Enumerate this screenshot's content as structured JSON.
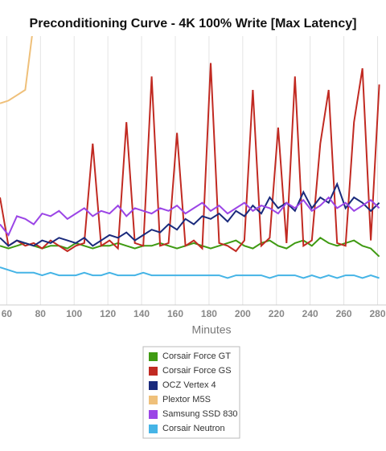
{
  "chart_data": {
    "type": "line",
    "title": "Preconditioning Curve - 4K 100% Write [Max Latency]",
    "x_label": "Minutes",
    "xlim": [
      56,
      285
    ],
    "ylim": [
      0,
      100
    ],
    "xticks": [
      60,
      80,
      100,
      120,
      140,
      160,
      180,
      200,
      220,
      240,
      260,
      280
    ],
    "grid": true,
    "legend": "bottom",
    "x": [
      56,
      61,
      66,
      71,
      76,
      81,
      86,
      91,
      96,
      101,
      106,
      111,
      116,
      121,
      126,
      131,
      136,
      141,
      146,
      151,
      156,
      161,
      166,
      171,
      176,
      181,
      186,
      191,
      196,
      201,
      206,
      211,
      216,
      221,
      226,
      231,
      236,
      241,
      246,
      251,
      256,
      261,
      266,
      271,
      276,
      281
    ],
    "series": [
      {
        "name": "Corsair Force GT",
        "color": "#3f9a12",
        "values": [
          22,
          21,
          22,
          23,
          22,
          21,
          22,
          22,
          21,
          23,
          22,
          21,
          22,
          22,
          23,
          22,
          21,
          22,
          22,
          23,
          22,
          21,
          22,
          23,
          22,
          21,
          22,
          23,
          24,
          22,
          21,
          23,
          24,
          22,
          21,
          23,
          24,
          22,
          25,
          23,
          22,
          23,
          24,
          22,
          21,
          18
        ]
      },
      {
        "name": "Corsair Force GS",
        "color": "#c12a22",
        "values": [
          40,
          22,
          24,
          22,
          23,
          21,
          24,
          22,
          20,
          22,
          23,
          60,
          22,
          24,
          21,
          68,
          23,
          22,
          85,
          22,
          23,
          64,
          22,
          24,
          21,
          90,
          23,
          22,
          20,
          24,
          80,
          22,
          25,
          66,
          23,
          85,
          22,
          24,
          60,
          80,
          23,
          22,
          68,
          88,
          24,
          82
        ]
      },
      {
        "name": "OCZ Vertex 4",
        "color": "#1a2a7c",
        "values": [
          25,
          22,
          24,
          23,
          22,
          24,
          23,
          25,
          24,
          23,
          25,
          22,
          24,
          26,
          25,
          27,
          24,
          26,
          28,
          27,
          30,
          28,
          32,
          30,
          33,
          32,
          34,
          31,
          35,
          33,
          37,
          34,
          40,
          36,
          38,
          35,
          42,
          36,
          40,
          38,
          45,
          36,
          40,
          38,
          35,
          38
        ]
      },
      {
        "name": "Plextor M5S",
        "color": "#efc07a",
        "values": [
          75,
          76,
          78,
          80,
          105,
          null,
          null,
          null,
          null,
          null,
          null,
          null,
          null,
          null,
          null,
          null,
          null,
          null,
          null,
          null,
          null,
          null,
          null,
          null,
          null,
          null,
          null,
          null,
          null,
          null,
          null,
          null,
          null,
          null,
          null,
          null,
          null,
          null,
          null,
          null,
          null,
          null,
          null,
          null,
          null,
          null
        ]
      },
      {
        "name": "Samsung SSD 830",
        "color": "#9b45e6",
        "values": [
          30,
          26,
          33,
          32,
          30,
          34,
          33,
          35,
          32,
          34,
          36,
          33,
          35,
          34,
          37,
          33,
          36,
          35,
          34,
          36,
          35,
          37,
          34,
          36,
          38,
          35,
          37,
          34,
          36,
          38,
          35,
          37,
          36,
          34,
          38,
          36,
          39,
          35,
          37,
          40,
          36,
          38,
          35,
          37,
          39,
          36
        ]
      },
      {
        "name": "Corsair Neutron",
        "color": "#45b4e6",
        "values": [
          14,
          13,
          12,
          12,
          12,
          11,
          12,
          11,
          11,
          11,
          12,
          11,
          11,
          12,
          11,
          11,
          11,
          12,
          11,
          11,
          11,
          11,
          11,
          11,
          11,
          11,
          11,
          10,
          11,
          11,
          11,
          11,
          10,
          11,
          11,
          11,
          10,
          11,
          10,
          11,
          10,
          11,
          11,
          10,
          11,
          10
        ]
      }
    ]
  }
}
